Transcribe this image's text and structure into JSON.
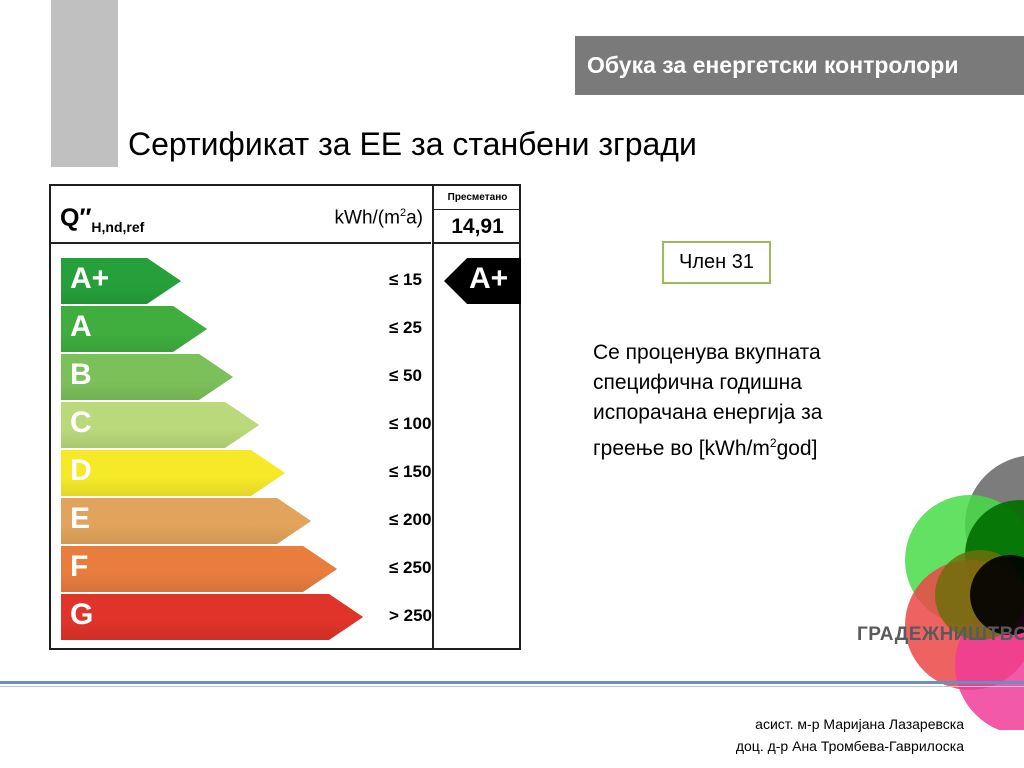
{
  "header": {
    "course_title": "Обука за енергетски контролори",
    "slide_title": "Сертификат за ЕЕ за станбени згради"
  },
  "energy_label": {
    "symbol": "Q″",
    "symbol_subscript": "H,nd,ref",
    "unit_base": "kWh/(m",
    "unit_exp": "2",
    "unit_end": "a)",
    "calculated_header": "Пресметано",
    "calculated_value": "14,91",
    "calculated_class": "A+",
    "classes": [
      {
        "letter": "A+",
        "threshold": "≤ 15",
        "color": "#26a03a"
      },
      {
        "letter": "A",
        "threshold": "≤ 25",
        "color": "#3fae3f"
      },
      {
        "letter": "B",
        "threshold": "≤ 50",
        "color": "#7cc05a"
      },
      {
        "letter": "C",
        "threshold": "≤ 100",
        "color": "#b9d97a"
      },
      {
        "letter": "D",
        "threshold": "≤ 150",
        "color": "#f5e928"
      },
      {
        "letter": "E",
        "threshold": "≤ 200",
        "color": "#e2a45c"
      },
      {
        "letter": "F",
        "threshold": "≤ 250",
        "color": "#e87d3e"
      },
      {
        "letter": "G",
        "threshold": "> 250",
        "color": "#e0332a"
      }
    ]
  },
  "sidebar": {
    "member": "Член 31",
    "description_main": "Се проценува вкупната специфична годишна испорачана енергија за греење во [kWh/m",
    "description_sup": "2",
    "description_end": "god]"
  },
  "logo": {
    "text": "ГРАДЕЖНИШТВО"
  },
  "footer": {
    "author_1": "асист. м-р Маријана Лазаревска",
    "author_2": "доц. д-р Ана Тромбева-Гаврилоска"
  }
}
